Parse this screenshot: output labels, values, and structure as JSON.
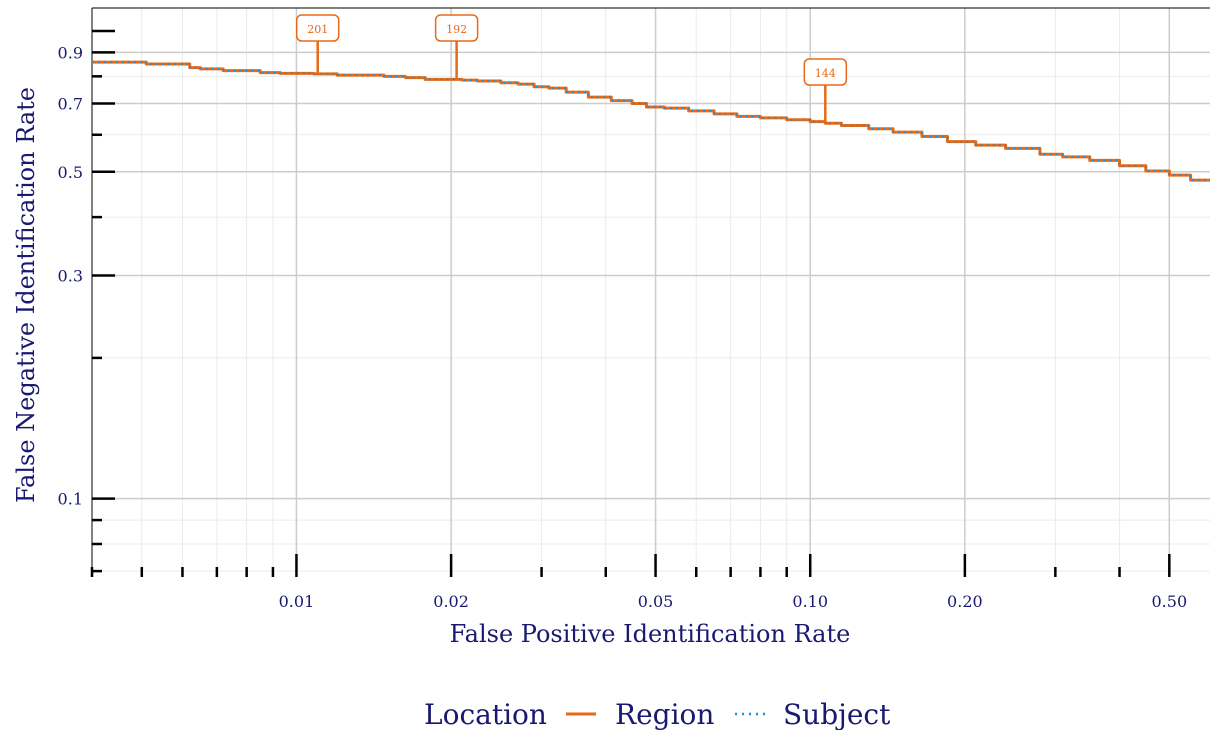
{
  "chart_data": {
    "type": "line",
    "title": "",
    "xlabel": "False Positive Identification Rate",
    "ylabel": "False Negative Identification Rate",
    "x_scale": "log",
    "y_scale": "log",
    "xlim": [
      0.004,
      0.6
    ],
    "ylim": [
      0.068,
      1.12
    ],
    "x_ticks": [
      0.01,
      0.02,
      0.05,
      0.1,
      0.2,
      0.5
    ],
    "x_tick_labels": [
      "0.01",
      "0.02",
      "0.05",
      "0.10",
      "0.20",
      "0.50"
    ],
    "y_ticks": [
      0.1,
      0.3,
      0.5,
      0.7,
      0.9
    ],
    "y_tick_labels": [
      "0.1",
      "0.3",
      "0.5",
      "0.7",
      "0.9"
    ],
    "grid": true,
    "legend": {
      "title": "Location",
      "placement": "bottom",
      "entries": [
        "Region",
        "Subject"
      ]
    },
    "series": [
      {
        "name": "Region",
        "color": "#e66a17",
        "style": "solid",
        "x": [
          0.004,
          0.0048,
          0.0051,
          0.0055,
          0.0062,
          0.0065,
          0.0072,
          0.0078,
          0.0085,
          0.0093,
          0.0108,
          0.012,
          0.0135,
          0.0148,
          0.0163,
          0.0178,
          0.0195,
          0.021,
          0.0225,
          0.025,
          0.027,
          0.029,
          0.031,
          0.0335,
          0.037,
          0.041,
          0.045,
          0.048,
          0.052,
          0.058,
          0.065,
          0.072,
          0.08,
          0.09,
          0.1,
          0.107,
          0.115,
          0.13,
          0.145,
          0.165,
          0.185,
          0.21,
          0.24,
          0.28,
          0.31,
          0.35,
          0.4,
          0.45,
          0.5,
          0.55,
          0.6
        ],
        "y": [
          0.858,
          0.858,
          0.85,
          0.85,
          0.835,
          0.83,
          0.823,
          0.823,
          0.815,
          0.812,
          0.81,
          0.805,
          0.805,
          0.8,
          0.795,
          0.788,
          0.788,
          0.785,
          0.782,
          0.775,
          0.77,
          0.76,
          0.755,
          0.74,
          0.722,
          0.71,
          0.7,
          0.688,
          0.684,
          0.675,
          0.665,
          0.657,
          0.652,
          0.646,
          0.64,
          0.635,
          0.628,
          0.618,
          0.608,
          0.595,
          0.58,
          0.57,
          0.561,
          0.545,
          0.538,
          0.529,
          0.515,
          0.502,
          0.492,
          0.48,
          0.478
        ]
      },
      {
        "name": "Subject",
        "color": "#1f8fd6",
        "style": "dotted",
        "x": [
          0.004,
          0.0048,
          0.0051,
          0.0055,
          0.0062,
          0.0065,
          0.0072,
          0.0078,
          0.0085,
          0.0093,
          0.0108,
          0.012,
          0.0135,
          0.0148,
          0.0163,
          0.0178,
          0.0195,
          0.021,
          0.0225,
          0.025,
          0.027,
          0.029,
          0.031,
          0.0335,
          0.037,
          0.041,
          0.045,
          0.048,
          0.052,
          0.058,
          0.065,
          0.072,
          0.08,
          0.09,
          0.1,
          0.107,
          0.115,
          0.13,
          0.145,
          0.165,
          0.185,
          0.21,
          0.24,
          0.28,
          0.31,
          0.35,
          0.4,
          0.45,
          0.5,
          0.55,
          0.6
        ],
        "y": [
          0.858,
          0.858,
          0.85,
          0.85,
          0.835,
          0.83,
          0.823,
          0.823,
          0.815,
          0.812,
          0.81,
          0.805,
          0.805,
          0.8,
          0.795,
          0.788,
          0.788,
          0.785,
          0.782,
          0.775,
          0.77,
          0.76,
          0.755,
          0.74,
          0.722,
          0.71,
          0.7,
          0.688,
          0.684,
          0.675,
          0.665,
          0.657,
          0.652,
          0.646,
          0.64,
          0.635,
          0.628,
          0.618,
          0.608,
          0.595,
          0.58,
          0.57,
          0.561,
          0.545,
          0.538,
          0.529,
          0.515,
          0.502,
          0.492,
          0.48,
          0.478
        ]
      }
    ],
    "annotations": [
      {
        "label": "201",
        "x": 0.011,
        "y": 0.81,
        "color": "#e66a17"
      },
      {
        "label": "192",
        "x": 0.0205,
        "y": 0.786,
        "color": "#e66a17"
      },
      {
        "label": "144",
        "x": 0.107,
        "y": 0.635,
        "color": "#e66a17"
      }
    ]
  }
}
